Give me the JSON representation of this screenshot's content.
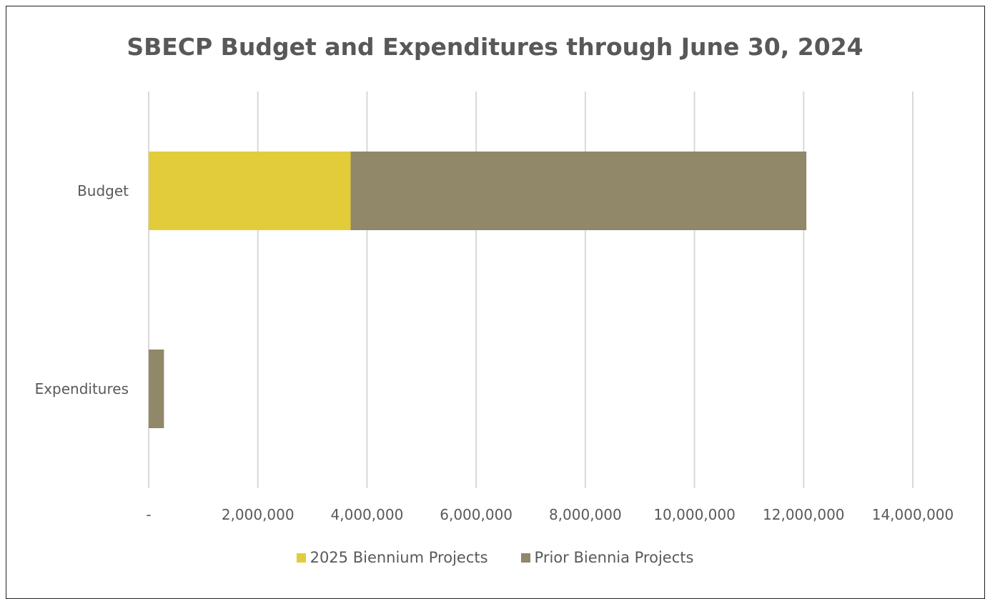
{
  "chart_data": {
    "type": "bar",
    "orientation": "horizontal",
    "stacked": true,
    "title": "SBECP Budget and Expenditures through June 30, 2024",
    "categories": [
      "Budget",
      "Expenditures"
    ],
    "series": [
      {
        "name": "2025 Biennium Projects",
        "values": [
          3700000,
          0
        ],
        "color": "#e3cc3a"
      },
      {
        "name": "Prior Biennia Projects",
        "values": [
          8350000,
          280000
        ],
        "color": "#918769"
      }
    ],
    "xlim": [
      0,
      14000000
    ],
    "x_ticks": [
      0,
      2000000,
      4000000,
      6000000,
      8000000,
      10000000,
      12000000,
      14000000
    ],
    "x_tick_labels": [
      "-",
      "2,000,000",
      "4,000,000",
      "6,000,000",
      "8,000,000",
      "10,000,000",
      "12,000,000",
      "14,000,000"
    ],
    "grid": true,
    "legend_position": "bottom"
  }
}
